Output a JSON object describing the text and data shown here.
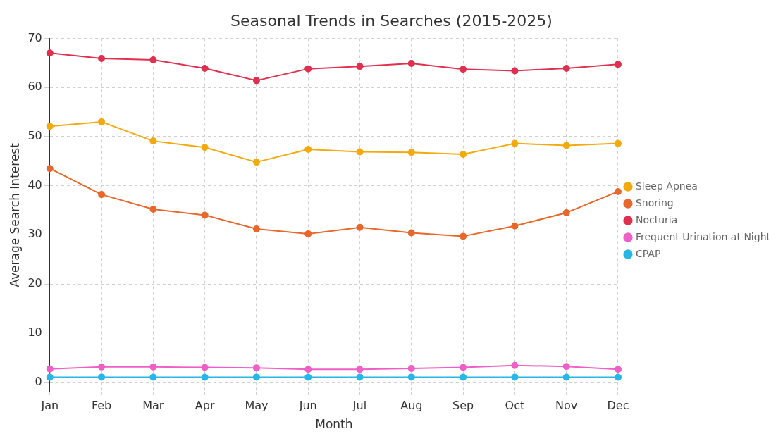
{
  "chart_data": {
    "type": "line",
    "title": "Seasonal Trends in Searches (2015-2025)",
    "xlabel": "Month",
    "ylabel": "Average Search Interest",
    "categories": [
      "Jan",
      "Feb",
      "Mar",
      "Apr",
      "May",
      "Jun",
      "Jul",
      "Aug",
      "Sep",
      "Oct",
      "Nov",
      "Dec"
    ],
    "series": [
      {
        "name": "Sleep Apnea",
        "color": "#f4a90c",
        "values": [
          52.1,
          53.0,
          49.1,
          47.8,
          44.8,
          47.4,
          46.9,
          46.8,
          46.4,
          48.6,
          48.2,
          48.6
        ]
      },
      {
        "name": "Snoring",
        "color": "#e8672a",
        "values": [
          43.5,
          38.2,
          35.2,
          34.0,
          31.2,
          30.2,
          31.5,
          30.4,
          29.7,
          31.8,
          34.5,
          38.8
        ]
      },
      {
        "name": "Nocturia",
        "color": "#e0304e",
        "values": [
          67.0,
          65.9,
          65.6,
          63.9,
          61.4,
          63.8,
          64.3,
          64.9,
          63.7,
          63.4,
          63.9,
          64.7
        ]
      },
      {
        "name": "Frequent Urination at Night",
        "color": "#f05ec8",
        "values": [
          2.7,
          3.1,
          3.1,
          3.0,
          2.9,
          2.6,
          2.6,
          2.8,
          3.0,
          3.4,
          3.2,
          2.6
        ]
      },
      {
        "name": "CPAP",
        "color": "#27b6e8",
        "values": [
          1.0,
          1.0,
          1.0,
          1.0,
          1.0,
          1.0,
          1.0,
          1.0,
          1.0,
          1.0,
          1.0,
          1.0
        ]
      }
    ],
    "ylim": [
      -2,
      70
    ],
    "yticks": [
      0,
      10,
      20,
      30,
      40,
      50,
      60,
      70
    ],
    "grid": true,
    "legend": "right",
    "marker": "circle",
    "line_style": "solid"
  }
}
